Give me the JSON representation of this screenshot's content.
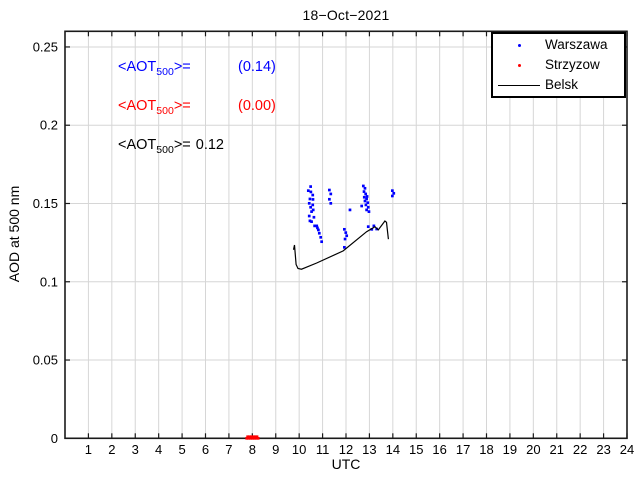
{
  "colors": {
    "grid": "#d6d6d6",
    "axis": "#1a1a1a",
    "warszawa": "#0000ff",
    "strzyzow": "#ff0000",
    "belsk": "#000000"
  },
  "annotations": {
    "warszawa": {
      "prefix": "<AOT",
      "sub": "500",
      "mid": ">=",
      "value": "(0.14)"
    },
    "strzyzow": {
      "prefix": "<AOT",
      "sub": "500",
      "mid": ">=",
      "value": "(0.00)"
    },
    "belsk": {
      "prefix": "<AOT",
      "sub": "500",
      "mid": ">=",
      "value": "0.12"
    }
  },
  "chart_data": {
    "type": "scatter",
    "title": "18−Oct−2021",
    "xlabel": "UTC",
    "ylabel": "AOD at 500 nm",
    "xlim": [
      0,
      24
    ],
    "ylim": [
      0,
      0.26
    ],
    "x_ticks": [
      1,
      2,
      3,
      4,
      5,
      6,
      7,
      8,
      9,
      10,
      11,
      12,
      13,
      14,
      15,
      16,
      17,
      18,
      19,
      20,
      21,
      22,
      23,
      24
    ],
    "y_ticks": [
      0,
      0.05,
      0.1,
      0.15,
      0.2,
      0.25
    ],
    "y_tick_labels": [
      "0",
      "0.05",
      "0.1",
      "0.15",
      "0.2",
      "0.25"
    ],
    "grid": true,
    "legend_position": "top-right",
    "series": [
      {
        "name": "Warszawa",
        "type": "scatter",
        "color": "#0000ff",
        "points": [
          [
            10.49,
            0.1608
          ],
          [
            10.39,
            0.1582
          ],
          [
            10.5,
            0.1574
          ],
          [
            10.58,
            0.1554
          ],
          [
            10.46,
            0.1529
          ],
          [
            10.59,
            0.1526
          ],
          [
            10.43,
            0.1501
          ],
          [
            10.58,
            0.1491
          ],
          [
            10.49,
            0.1476
          ],
          [
            10.6,
            0.1459
          ],
          [
            10.53,
            0.1448
          ],
          [
            10.43,
            0.142
          ],
          [
            10.63,
            0.1412
          ],
          [
            10.46,
            0.1389
          ],
          [
            10.53,
            0.1384
          ],
          [
            10.66,
            0.1357
          ],
          [
            10.75,
            0.1357
          ],
          [
            10.78,
            0.1344
          ],
          [
            10.82,
            0.1331
          ],
          [
            10.86,
            0.131
          ],
          [
            10.92,
            0.1284
          ],
          [
            10.96,
            0.1256
          ],
          [
            11.29,
            0.1586
          ],
          [
            11.35,
            0.1561
          ],
          [
            11.29,
            0.1527
          ],
          [
            11.35,
            0.1501
          ],
          [
            11.93,
            0.1335
          ],
          [
            11.99,
            0.1314
          ],
          [
            12.03,
            0.1294
          ],
          [
            11.96,
            0.1273
          ],
          [
            11.93,
            0.122
          ],
          [
            12.17,
            0.1459
          ],
          [
            12.74,
            0.1612
          ],
          [
            12.81,
            0.1597
          ],
          [
            12.77,
            0.1576
          ],
          [
            12.84,
            0.1561
          ],
          [
            12.78,
            0.154
          ],
          [
            12.88,
            0.1529
          ],
          [
            12.81,
            0.1516
          ],
          [
            12.93,
            0.1505
          ],
          [
            12.9,
            0.1545
          ],
          [
            12.85,
            0.1491
          ],
          [
            12.67,
            0.1484
          ],
          [
            12.95,
            0.1476
          ],
          [
            12.88,
            0.1459
          ],
          [
            12.98,
            0.1448
          ],
          [
            12.95,
            0.1352
          ],
          [
            13.1,
            0.1335
          ],
          [
            13.19,
            0.1357
          ],
          [
            13.31,
            0.1337
          ],
          [
            13.98,
            0.1582
          ],
          [
            14.04,
            0.1565
          ],
          [
            13.98,
            0.1548
          ]
        ]
      },
      {
        "name": "Strzyzow",
        "type": "scatter",
        "color": "#ff0000",
        "points": [
          [
            7.76,
            0.0
          ],
          [
            7.8,
            0.001
          ],
          [
            7.84,
            0.0
          ],
          [
            7.88,
            0.001
          ],
          [
            7.92,
            0.0
          ],
          [
            7.96,
            0.001
          ],
          [
            8.0,
            0.0
          ],
          [
            8.04,
            0.001
          ],
          [
            8.08,
            0.0
          ],
          [
            8.12,
            0.001
          ],
          [
            8.16,
            0.0
          ],
          [
            8.2,
            0.001
          ],
          [
            8.25,
            0.0
          ]
        ]
      },
      {
        "name": "Belsk",
        "type": "line",
        "color": "#000000",
        "points": [
          [
            9.76,
            0.1205
          ],
          [
            9.8,
            0.1235
          ],
          [
            9.87,
            0.111
          ],
          [
            9.95,
            0.1085
          ],
          [
            10.1,
            0.108
          ],
          [
            10.75,
            0.112
          ],
          [
            11.88,
            0.1197
          ],
          [
            12.88,
            0.132
          ],
          [
            13.24,
            0.1352
          ],
          [
            13.38,
            0.1331
          ],
          [
            13.66,
            0.1388
          ],
          [
            13.73,
            0.138
          ],
          [
            13.81,
            0.1272
          ]
        ]
      }
    ]
  }
}
